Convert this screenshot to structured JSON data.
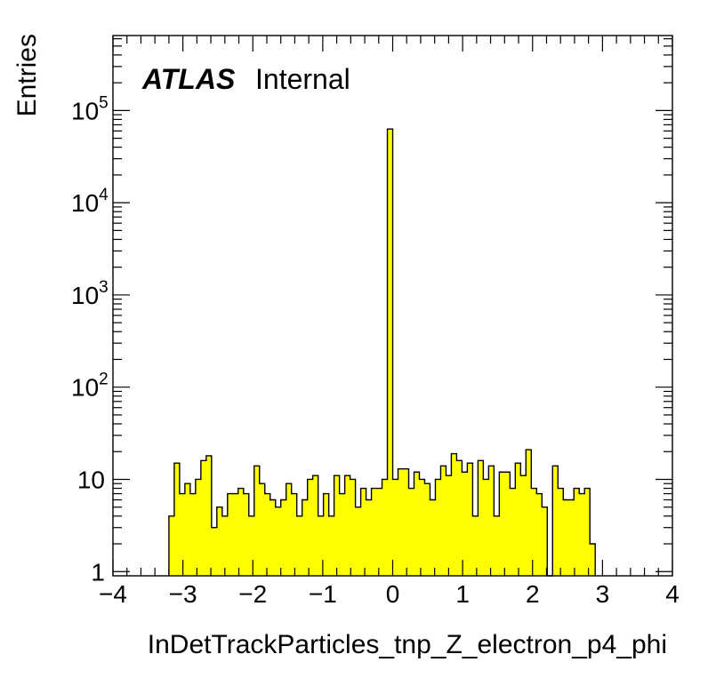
{
  "chart_data": {
    "type": "bar",
    "title": "",
    "xlabel": "InDetTrackParticles_tnp_Z_electron_p4_phi",
    "ylabel": "Entries",
    "xlim": [
      -4,
      4
    ],
    "ylim": [
      0.9,
      650000
    ],
    "log_y": true,
    "grid": false,
    "x_ticks": [
      "−4",
      "−3",
      "−2",
      "−1",
      "0",
      "1",
      "2",
      "3",
      "4"
    ],
    "x_tick_values": [
      -4,
      -3,
      -2,
      -1,
      0,
      1,
      2,
      3,
      4
    ],
    "y_ticks": [
      {
        "value": 1,
        "base": "1",
        "exp": ""
      },
      {
        "value": 10,
        "base": "10",
        "exp": ""
      },
      {
        "value": 100,
        "base": "10",
        "exp": "2"
      },
      {
        "value": 1000,
        "base": "10",
        "exp": "3"
      },
      {
        "value": 10000,
        "base": "10",
        "exp": "4"
      },
      {
        "value": 100000,
        "base": "10",
        "exp": "5"
      }
    ],
    "fill_color": "#ffff00",
    "line_color": "#000000",
    "bins": {
      "start": -3.2,
      "width": 0.0762,
      "values": [
        4,
        15,
        7,
        9,
        7,
        10,
        16,
        18,
        3,
        5,
        4,
        7,
        7,
        8,
        7,
        4,
        14,
        9,
        7,
        6,
        5,
        6,
        9,
        7,
        4,
        6,
        10,
        11,
        4,
        7,
        4,
        11,
        7,
        11,
        10,
        5,
        8,
        6,
        8,
        8,
        10,
        63000,
        10,
        13,
        13,
        8,
        12,
        10,
        9,
        6,
        10,
        14,
        11,
        19,
        16,
        12,
        15,
        4,
        16,
        10,
        14,
        4,
        12,
        12,
        8,
        15,
        11,
        21,
        8,
        7,
        5,
        0,
        14,
        8,
        6,
        6,
        8,
        7,
        8,
        2
      ]
    }
  },
  "annotation": {
    "experiment": "ATLAS",
    "status": "Internal"
  }
}
